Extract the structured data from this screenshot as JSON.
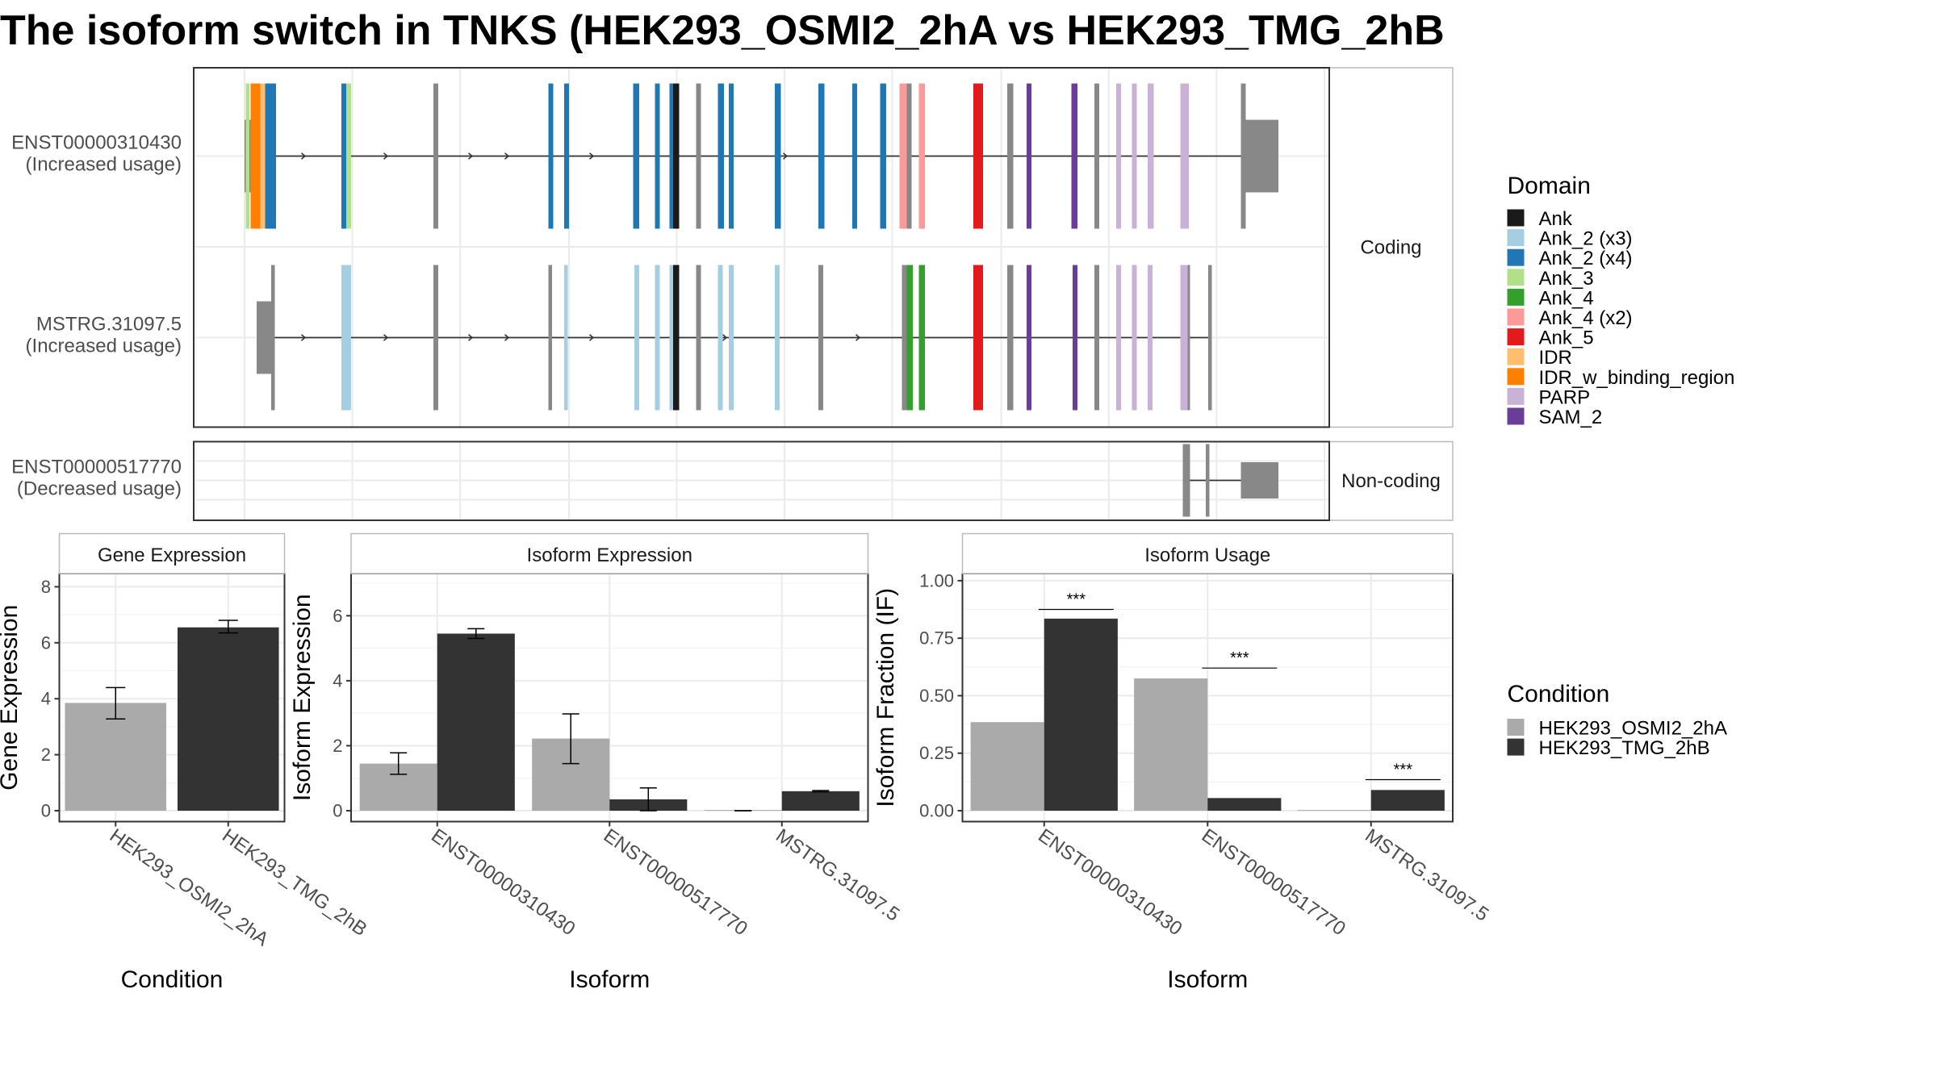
{
  "title": "The isoform switch in TNKS (HEK293_OSMI2_2hA vs HEK293_TMG_2hB",
  "colors": {
    "condA": "#aaaaaa",
    "condB": "#333333",
    "exon_grey": "#888888",
    "panel_border": "#333333",
    "strip_border": "#bbbbbb",
    "grid": "#ebebeb"
  },
  "structure": {
    "coding_label": "Coding",
    "noncoding_label": "Non-coding",
    "isoforms": [
      {
        "id": "ENST00000310430",
        "usage": "(Increased usage)",
        "group": "coding",
        "exons": [
          {
            "x": 203,
            "w": 3,
            "d": "Ank_3"
          },
          {
            "x": 207,
            "w": 8,
            "d": "IDR_w_binding_region"
          },
          {
            "x": 215,
            "w": 4,
            "d": "IDR"
          },
          {
            "x": 219,
            "w": 9,
            "d": "Ank_2 (x4)"
          },
          {
            "x": 282,
            "w": 4,
            "d": "Ank_2 (x4)"
          },
          {
            "x": 286,
            "w": 4,
            "d": "Ank_3"
          },
          {
            "x": 358,
            "w": 4,
            "d": null
          },
          {
            "x": 453,
            "w": 4,
            "d": "Ank_2 (x4)"
          },
          {
            "x": 466,
            "w": 4,
            "d": "Ank_2 (x4)"
          },
          {
            "x": 523,
            "w": 5,
            "d": "Ank_2 (x4)"
          },
          {
            "x": 541,
            "w": 4,
            "d": "Ank_2 (x4)"
          },
          {
            "x": 553,
            "w": 3,
            "d": "Ank_2 (x4)"
          },
          {
            "x": 556,
            "w": 5,
            "d": "Ank"
          },
          {
            "x": 575,
            "w": 4,
            "d": null
          },
          {
            "x": 593,
            "w": 5,
            "d": "Ank_2 (x4)"
          },
          {
            "x": 602,
            "w": 4,
            "d": "Ank_2 (x4)"
          },
          {
            "x": 640,
            "w": 5,
            "d": "Ank_2 (x4)"
          },
          {
            "x": 676,
            "w": 5,
            "d": "Ank_2 (x4)"
          },
          {
            "x": 704,
            "w": 4,
            "d": "Ank_2 (x4)"
          },
          {
            "x": 727,
            "w": 5,
            "d": "Ank_2 (x4)"
          },
          {
            "x": 743,
            "w": 6,
            "d": "Ank_4 (x2)"
          },
          {
            "x": 749,
            "w": 4,
            "d": null
          },
          {
            "x": 759,
            "w": 5,
            "d": "Ank_4 (x2)"
          },
          {
            "x": 804,
            "w": 8,
            "d": "Ank_5"
          },
          {
            "x": 832,
            "w": 5,
            "d": null
          },
          {
            "x": 848,
            "w": 4,
            "d": "SAM_2"
          },
          {
            "x": 885,
            "w": 5,
            "d": "SAM_2"
          },
          {
            "x": 904,
            "w": 4,
            "d": null
          },
          {
            "x": 922,
            "w": 4,
            "d": "PARP"
          },
          {
            "x": 935,
            "w": 4,
            "d": "PARP"
          },
          {
            "x": 948,
            "w": 5,
            "d": "PARP"
          },
          {
            "x": 975,
            "w": 7,
            "d": "PARP"
          },
          {
            "x": 1025,
            "w": 4,
            "d": null
          }
        ]
      },
      {
        "id": "MSTRG.31097.5",
        "usage": "(Increased usage)",
        "group": "coding",
        "exons": [
          {
            "x": 224,
            "w": 3,
            "d": null
          },
          {
            "x": 282,
            "w": 8,
            "d": "Ank_2 (x3)"
          },
          {
            "x": 358,
            "w": 4,
            "d": null
          },
          {
            "x": 453,
            "w": 3,
            "d": null
          },
          {
            "x": 466,
            "w": 3,
            "d": "Ank_2 (x3)"
          },
          {
            "x": 524,
            "w": 4,
            "d": "Ank_2 (x3)"
          },
          {
            "x": 541,
            "w": 4,
            "d": "Ank_2 (x3)"
          },
          {
            "x": 553,
            "w": 4,
            "d": "Ank_2 (x3)"
          },
          {
            "x": 556,
            "w": 5,
            "d": "Ank"
          },
          {
            "x": 575,
            "w": 4,
            "d": null
          },
          {
            "x": 593,
            "w": 4,
            "d": "Ank_2 (x3)"
          },
          {
            "x": 602,
            "w": 4,
            "d": "Ank_2 (x3)"
          },
          {
            "x": 640,
            "w": 4,
            "d": "Ank_2 (x3)"
          },
          {
            "x": 676,
            "w": 4,
            "d": null
          },
          {
            "x": 745,
            "w": 4,
            "d": null
          },
          {
            "x": 749,
            "w": 5,
            "d": "Ank_4"
          },
          {
            "x": 759,
            "w": 5,
            "d": "Ank_4"
          },
          {
            "x": 804,
            "w": 8,
            "d": "Ank_5"
          },
          {
            "x": 832,
            "w": 5,
            "d": null
          },
          {
            "x": 848,
            "w": 4,
            "d": "SAM_2"
          },
          {
            "x": 886,
            "w": 4,
            "d": "SAM_2"
          },
          {
            "x": 904,
            "w": 4,
            "d": null
          },
          {
            "x": 922,
            "w": 4,
            "d": "PARP"
          },
          {
            "x": 935,
            "w": 4,
            "d": "PARP"
          },
          {
            "x": 948,
            "w": 4,
            "d": "PARP"
          },
          {
            "x": 975,
            "w": 6,
            "d": "PARP"
          },
          {
            "x": 981,
            "w": 2,
            "d": null
          },
          {
            "x": 998,
            "w": 3,
            "d": null
          }
        ]
      },
      {
        "id": "ENST00000517770",
        "usage": "(Decreased usage)",
        "group": "noncoding",
        "exons": [
          {
            "x": 977,
            "w": 6,
            "d": null
          },
          {
            "x": 996,
            "w": 3,
            "d": null
          }
        ]
      }
    ]
  },
  "domain_legend": {
    "title": "Domain",
    "items": [
      {
        "label": "Ank",
        "color": "#1a1a1a"
      },
      {
        "label": "Ank_2 (x3)",
        "color": "#a6cee3"
      },
      {
        "label": "Ank_2 (x4)",
        "color": "#1f78b4"
      },
      {
        "label": "Ank_3",
        "color": "#b2df8a"
      },
      {
        "label": "Ank_4",
        "color": "#33a02c"
      },
      {
        "label": "Ank_4 (x2)",
        "color": "#fb9a99"
      },
      {
        "label": "Ank_5",
        "color": "#e31a1c"
      },
      {
        "label": "IDR",
        "color": "#fdbf6f"
      },
      {
        "label": "IDR_w_binding_region",
        "color": "#ff7f00"
      },
      {
        "label": "PARP",
        "color": "#cab2d6"
      },
      {
        "label": "SAM_2",
        "color": "#6a3d9a"
      }
    ]
  },
  "condition_legend": {
    "title": "Condition",
    "items": [
      {
        "label": "HEK293_OSMI2_2hA",
        "color": "#aaaaaa"
      },
      {
        "label": "HEK293_TMG_2hB",
        "color": "#333333"
      }
    ]
  },
  "chart_data": [
    {
      "type": "bar",
      "title": "Gene Expression",
      "xlabel": "Condition",
      "ylabel": "Gene Expression",
      "categories": [
        "HEK293_OSMI2_2hA",
        "HEK293_TMG_2hB"
      ],
      "values": [
        3.85,
        6.55
      ],
      "error_low": [
        3.28,
        6.35
      ],
      "error_high": [
        4.4,
        6.8
      ],
      "ylim": [
        0,
        8.3
      ],
      "yticks": [
        "0",
        "2",
        "4",
        "6",
        "8"
      ]
    },
    {
      "type": "bar",
      "title": "Isoform Expression",
      "xlabel": "Isoform",
      "ylabel": "Isoform Expression",
      "categories": [
        "ENST00000310430",
        "ENST00000517770",
        "MSTRG.31097.5"
      ],
      "series": [
        {
          "values": [
            1.45,
            2.22,
            0.0
          ],
          "error_low": [
            1.12,
            1.45,
            0.0
          ],
          "error_high": [
            1.78,
            2.98,
            0.0
          ]
        },
        {
          "values": [
            5.45,
            0.35,
            0.6
          ],
          "error_low": [
            5.3,
            0.0,
            0.58
          ],
          "error_high": [
            5.6,
            0.7,
            0.62
          ]
        }
      ],
      "ylim": [
        0,
        7.15
      ],
      "yticks": [
        "0",
        "2",
        "4",
        "6"
      ]
    },
    {
      "type": "bar",
      "title": "Isoform Usage",
      "xlabel": "Isoform",
      "ylabel": "Isoform Fraction (IF)",
      "categories": [
        "ENST00000310430",
        "ENST00000517770",
        "MSTRG.31097.5"
      ],
      "series": [
        {
          "values": [
            0.385,
            0.575,
            0.0
          ]
        },
        {
          "values": [
            0.835,
            0.055,
            0.09
          ]
        }
      ],
      "significance": [
        {
          "label": "***",
          "y": 0.875
        },
        {
          "label": "***",
          "y": 0.62
        },
        {
          "label": "***",
          "y": 0.135
        }
      ],
      "ylim": [
        0,
        1.01
      ],
      "yticks": [
        "0.00",
        "0.25",
        "0.50",
        "0.75",
        "1.00"
      ]
    }
  ]
}
